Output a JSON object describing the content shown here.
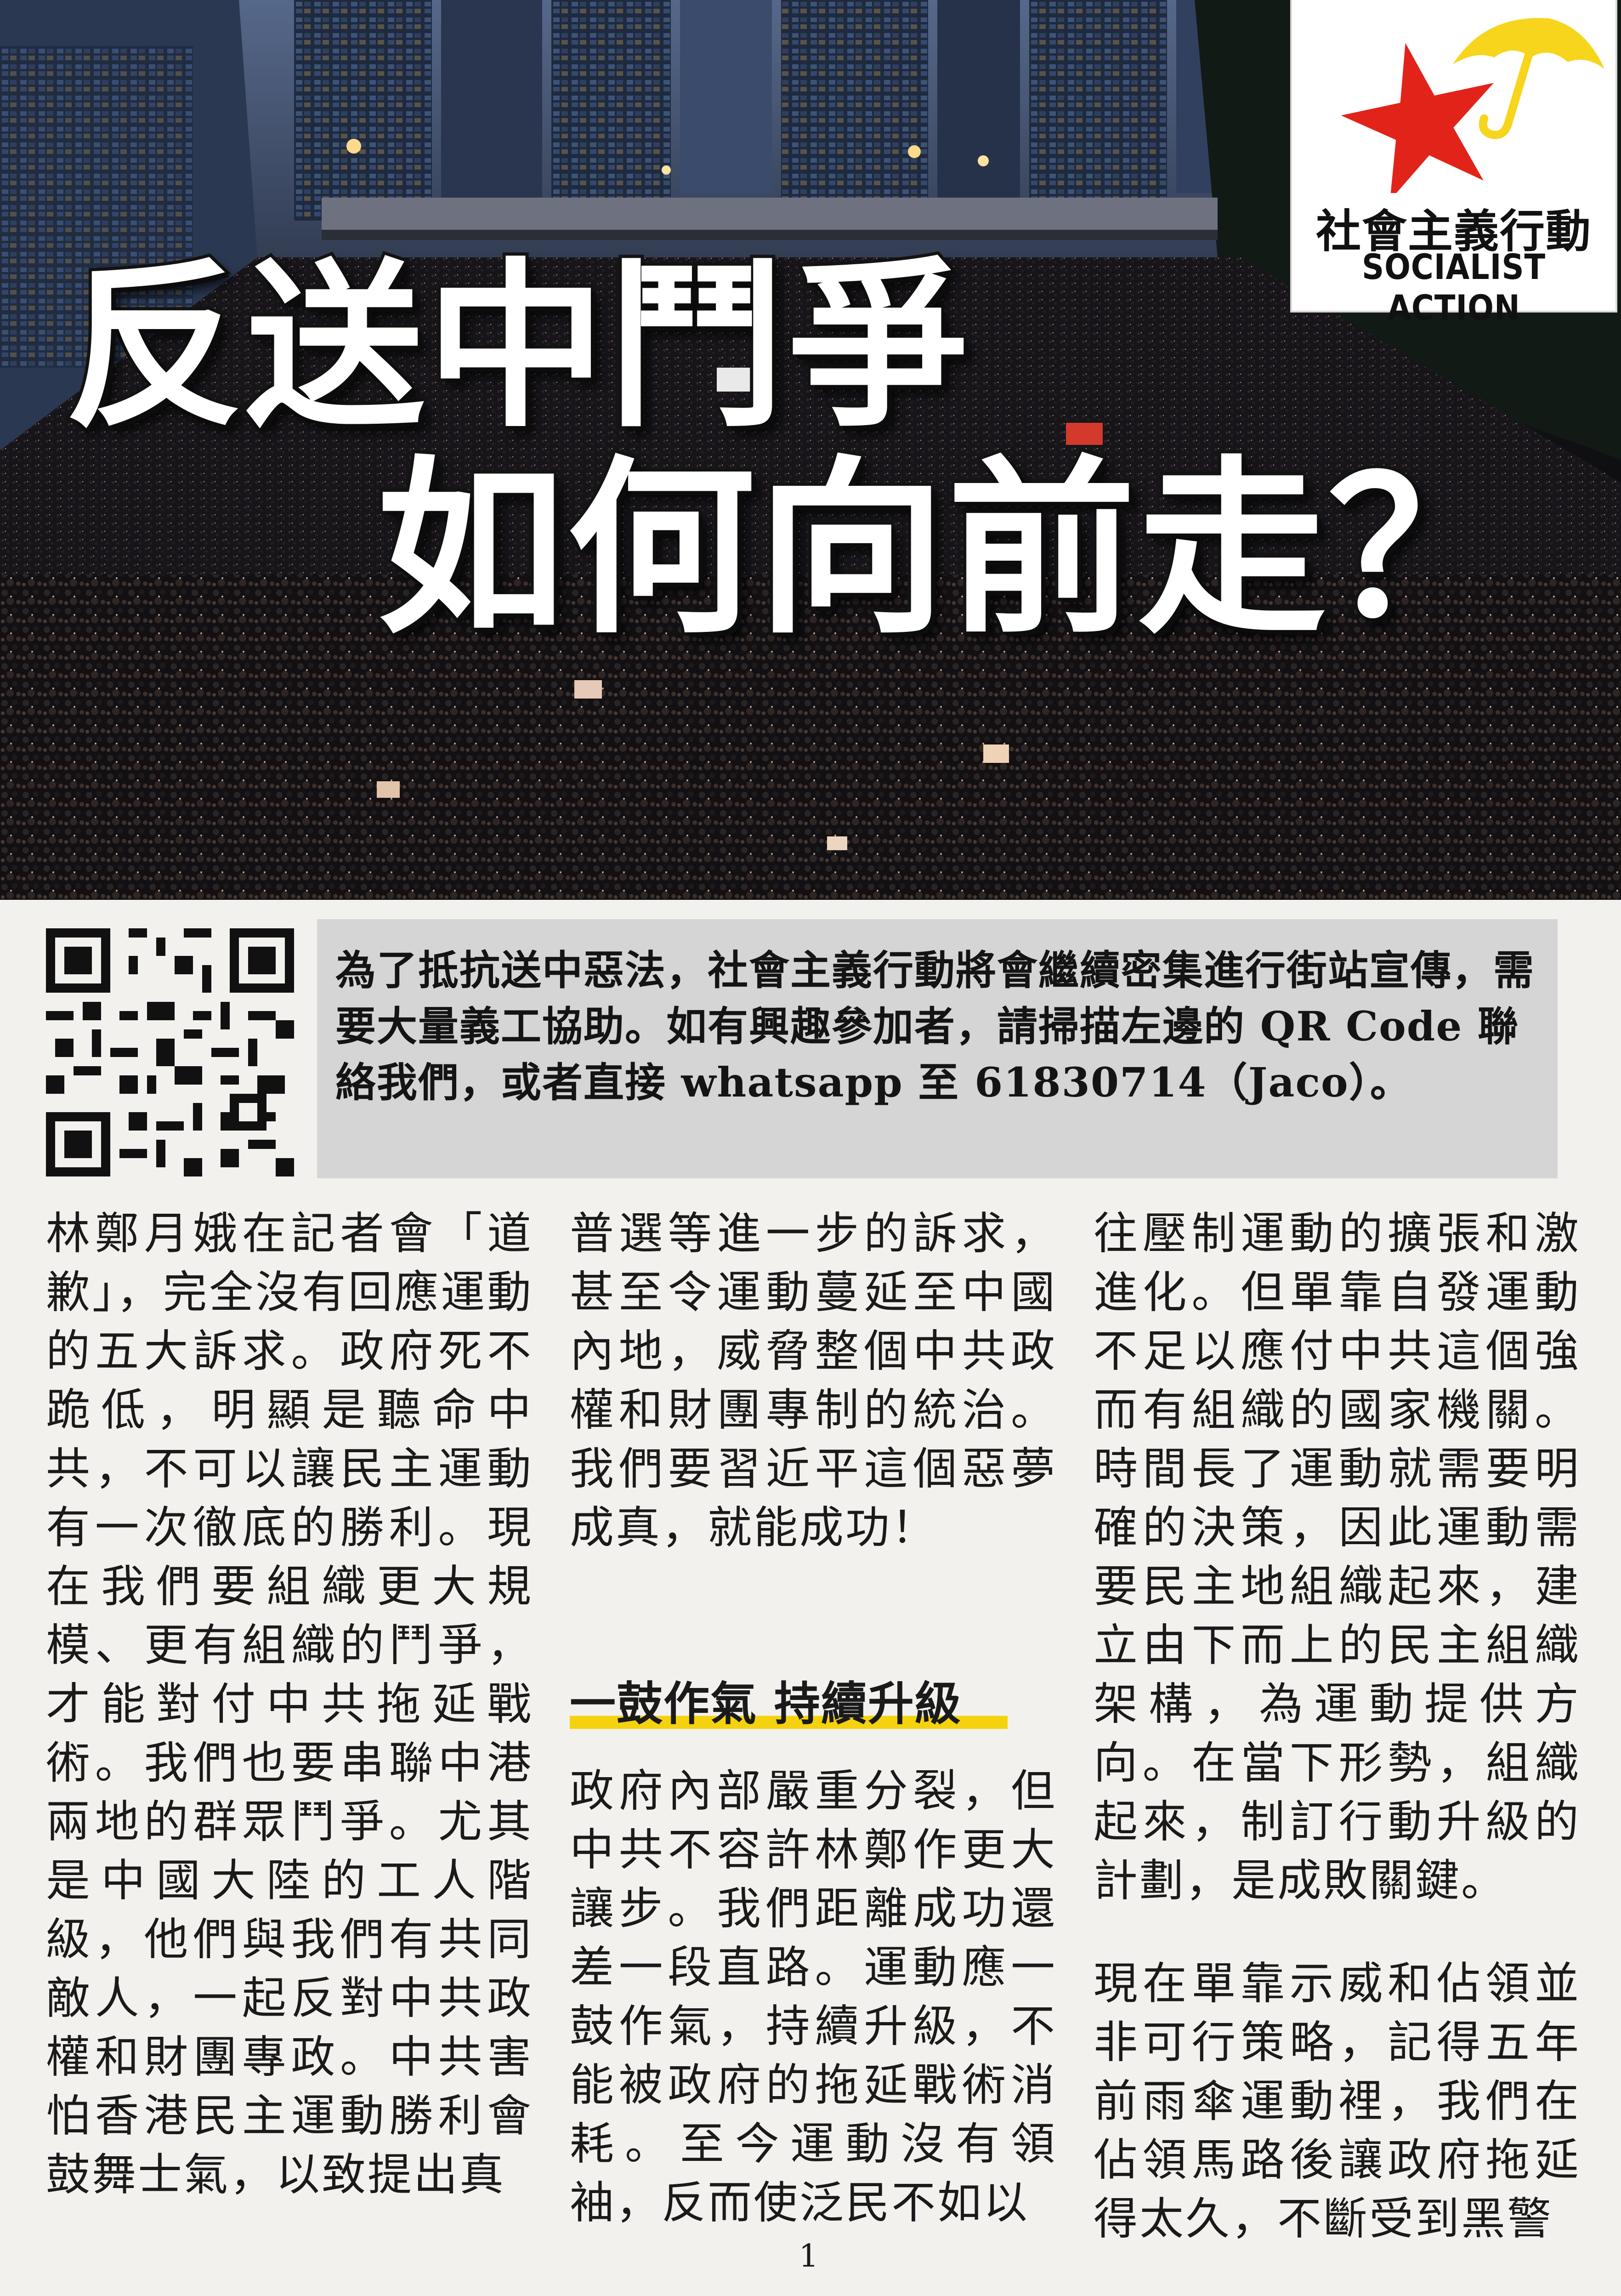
{
  "headline": {
    "line1": "反送中鬥爭",
    "line2": "如何向前走？"
  },
  "logo": {
    "name_cn": "社會主義行動",
    "name_en": "SOCIALIST ACTION",
    "colors": {
      "star": "#e2231a",
      "umbrella": "#f6d51c"
    }
  },
  "notice": {
    "text": "為了抵抗送中惡法，社會主義行動將會繼續密集進行街站宣傳，需要大量義工協助。如有興趣參加者，請掃描左邊的 QR Code 聯絡我們，或者直接 whatsapp 至 61830714（Jaco）。"
  },
  "article": {
    "col1": "林鄭月娥在記者會「道歉」，完全沒有回應運動的五大訴求。政府死不跪低，明顯是聽命中共，不可以讓民主運動有一次徹底的勝利。現在我們要組織更大規模、更有組織的鬥爭，才能對付中共拖延戰術。我們也要串聯中港兩地的群眾鬥爭。尤其是中國大陸的工人階級，他們與我們有共同敵人，一起反對中共政權和財團專政。中共害怕香港民主運動勝利會鼓舞士氣，以致提出真",
    "col2_a": "普選等進一步的訴求，甚至令運動蔓延至中國內地，威脅整個中共政權和財團專制的統治。我們要習近平這個惡夢成真，就能成功！",
    "subheading": "一鼓作氣 持續升級",
    "col2_b": "政府內部嚴重分裂，但中共不容許林鄭作更大讓步。我們距離成功還差一段直路。運動應一鼓作氣，持續升級，不能被政府的拖延戰術消耗。至今運動沒有領袖，反而使泛民不如以",
    "col3_a": "往壓制運動的擴張和激進化。但單靠自發運動不足以應付中共這個強而有組織的國家機關。時間長了運動就需要明確的決策，因此運動需要民主地組織起來，建立由下而上的民主組織架構，為運動提供方向。在當下形勢，組織起來，制訂行動升級的計劃，是成敗關鍵。",
    "col3_b": "現在單靠示威和佔領並非可行策略，記得五年前雨傘運動裡，我們在佔領馬路後讓政府拖延得太久，不斷受到黑警",
    "subheading_color": "#f5d20e"
  },
  "page_number": "1"
}
